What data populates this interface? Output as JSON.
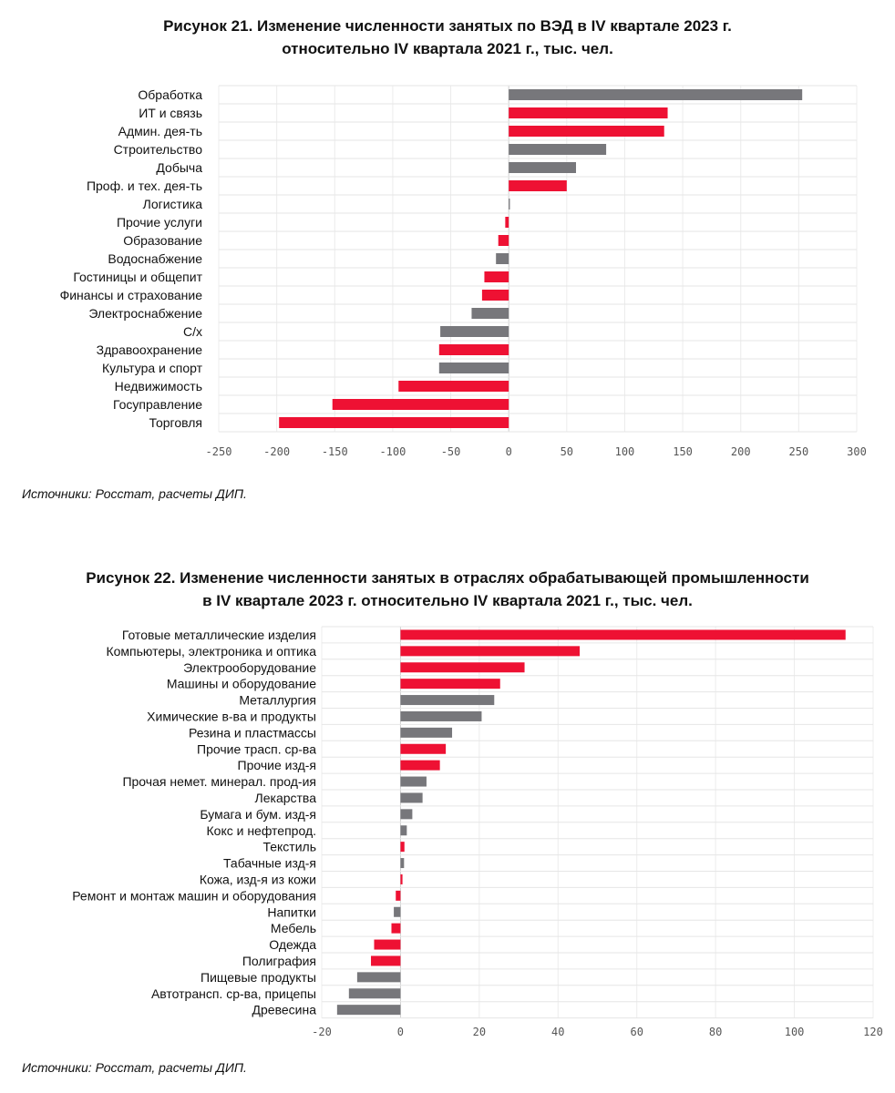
{
  "chart_data": [
    {
      "type": "bar",
      "orientation": "horizontal",
      "title_line1": "Рисунок 21. Изменение численности занятых по ВЭД в IV квартале 2023 г.",
      "title_line2": "относительно IV квартала 2021 г., тыс. чел.",
      "source": "Источники: Росстат, расчеты ДИП.",
      "xlim": [
        -250,
        300
      ],
      "xticks": [
        -250,
        -200,
        -150,
        -100,
        -50,
        0,
        50,
        100,
        150,
        200,
        250,
        300
      ],
      "grid": true,
      "colors": {
        "red": "#ee1133",
        "gray": "#77777b"
      },
      "categories": [
        "Обработка",
        "ИТ и связь",
        "Админ. дея-ть",
        "Строительство",
        "Добыча",
        "Проф. и тех. дея-ть",
        "Логистика",
        "Прочие услуги",
        "Образование",
        "Водоснабжение",
        "Гостиницы и общепит",
        "Финансы и страхование",
        "Электроснабжение",
        "С/х",
        "Здравоохранение",
        "Культура и спорт",
        "Недвижимость",
        "Госуправление",
        "Торговля"
      ],
      "values": [
        253,
        137,
        134,
        84,
        58,
        50,
        1,
        -3,
        -9,
        -11,
        -21,
        -23,
        -32,
        -59,
        -60,
        -60,
        -95,
        -152,
        -198
      ],
      "bar_colors": [
        "gray",
        "red",
        "red",
        "gray",
        "gray",
        "red",
        "gray",
        "red",
        "red",
        "gray",
        "red",
        "red",
        "gray",
        "gray",
        "red",
        "gray",
        "red",
        "red",
        "red"
      ]
    },
    {
      "type": "bar",
      "orientation": "horizontal",
      "title_line1": "Рисунок 22. Изменение численности занятых в отраслях обрабатывающей промышленности",
      "title_line2": "в IV квартале 2023 г. относительно IV квартала 2021 г., тыс. чел.",
      "source": "Источники: Росстат, расчеты ДИП.",
      "xlim": [
        -20,
        120
      ],
      "xticks": [
        -20,
        0,
        20,
        40,
        60,
        80,
        100,
        120
      ],
      "grid": true,
      "colors": {
        "red": "#ee1133",
        "gray": "#77777b"
      },
      "categories": [
        "Готовые металлические изделия",
        "Компьютеры, электроника и оптика",
        "Электрооборудование",
        "Машины и оборудование",
        "Металлургия",
        "Химические в-ва и продукты",
        "Резина и пластмассы",
        "Прочие трасп. ср-ва",
        "Прочие изд-я",
        "Прочая немет. минерал. прод-ия",
        "Лекарства",
        "Бумага и бум. изд-я",
        "Кокс и нефтепрод.",
        "Текстиль",
        "Табачные изд-я",
        "Кожа, изд-я из кожи",
        "Ремонт и монтаж машин и оборудования",
        "Напитки",
        "Мебель",
        "Одежда",
        "Полиграфия",
        "Пищевые продукты",
        "Автотрансп. ср-ва, прицепы",
        "Древесина"
      ],
      "values": [
        113,
        45.5,
        31.5,
        25.3,
        23.8,
        20.6,
        13.1,
        11.5,
        10,
        6.6,
        5.6,
        3,
        1.6,
        1,
        0.9,
        0.5,
        -1.2,
        -1.7,
        -2.3,
        -6.7,
        -7.5,
        -11,
        -13.1,
        -16.1
      ],
      "bar_colors": [
        "red",
        "red",
        "red",
        "red",
        "gray",
        "gray",
        "gray",
        "red",
        "red",
        "gray",
        "gray",
        "gray",
        "gray",
        "red",
        "gray",
        "red",
        "red",
        "gray",
        "red",
        "red",
        "red",
        "gray",
        "gray",
        "gray"
      ]
    }
  ]
}
